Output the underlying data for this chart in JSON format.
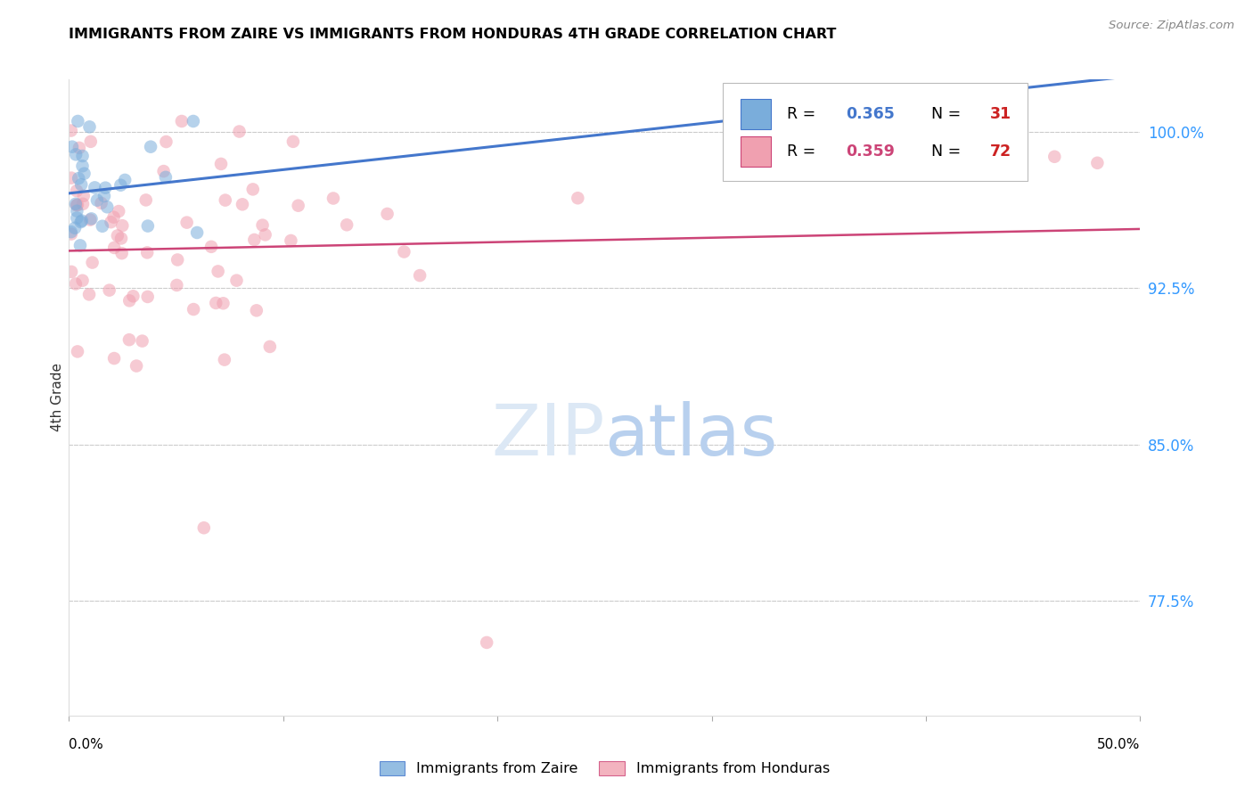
{
  "title": "IMMIGRANTS FROM ZAIRE VS IMMIGRANTS FROM HONDURAS 4TH GRADE CORRELATION CHART",
  "source": "Source: ZipAtlas.com",
  "ylabel": "4th Grade",
  "xlim": [
    0.0,
    0.5
  ],
  "ylim": [
    0.72,
    1.025
  ],
  "right_ytick_labels": [
    "100.0%",
    "92.5%",
    "85.0%",
    "77.5%"
  ],
  "right_ytick_vals": [
    1.0,
    0.925,
    0.85,
    0.775
  ],
  "grid_color": "#cccccc",
  "background_color": "#ffffff",
  "zaire_color": "#7aaddb",
  "honduras_color": "#f0a0b0",
  "zaire_R": 0.365,
  "zaire_N": 31,
  "honduras_R": 0.359,
  "honduras_N": 72,
  "zaire_line_color": "#4477cc",
  "honduras_line_color": "#cc4477",
  "legend_R_zaire_color": "#4477cc",
  "legend_R_honduras_color": "#cc4477",
  "legend_N_color": "#cc2222"
}
